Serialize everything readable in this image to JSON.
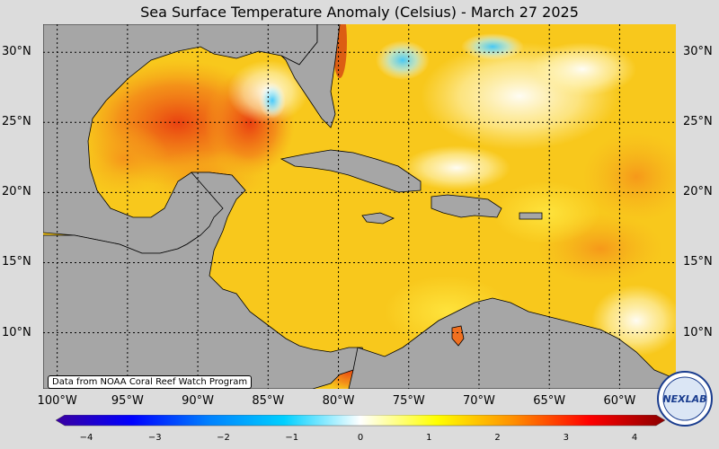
{
  "title": "Sea Surface Temperature Anomaly (Celsius) - March 27 2025",
  "source_note": "Data from NOAA Coral Reef Watch Program",
  "latitude_labels": [
    "30°N",
    "25°N",
    "20°N",
    "15°N",
    "10°N"
  ],
  "longitude_labels": [
    "100°W",
    "95°W",
    "90°W",
    "85°W",
    "80°W",
    "75°W",
    "70°W",
    "65°W",
    "60°W"
  ],
  "map": {
    "lat_range": [
      6,
      32
    ],
    "lon_range": [
      -101,
      -56
    ],
    "grid_lats": [
      30,
      25,
      20,
      15,
      10
    ],
    "grid_lons": [
      -100,
      -95,
      -90,
      -85,
      -80,
      -75,
      -70,
      -65,
      -60
    ],
    "land_color": "#a6a6a6",
    "ocean_base_color": "#f5c21a"
  },
  "colorbar": {
    "min": -4,
    "max": 4,
    "ticks": [
      "−4",
      "−3",
      "−2",
      "−1",
      "0",
      "1",
      "2",
      "3",
      "4"
    ],
    "colors": [
      "#3a00a0",
      "#0000ff",
      "#0080ff",
      "#00d0ff",
      "#ffffff",
      "#ffff00",
      "#ff9000",
      "#ff0000",
      "#8b0000"
    ]
  },
  "logo_text": "NEXLAB"
}
